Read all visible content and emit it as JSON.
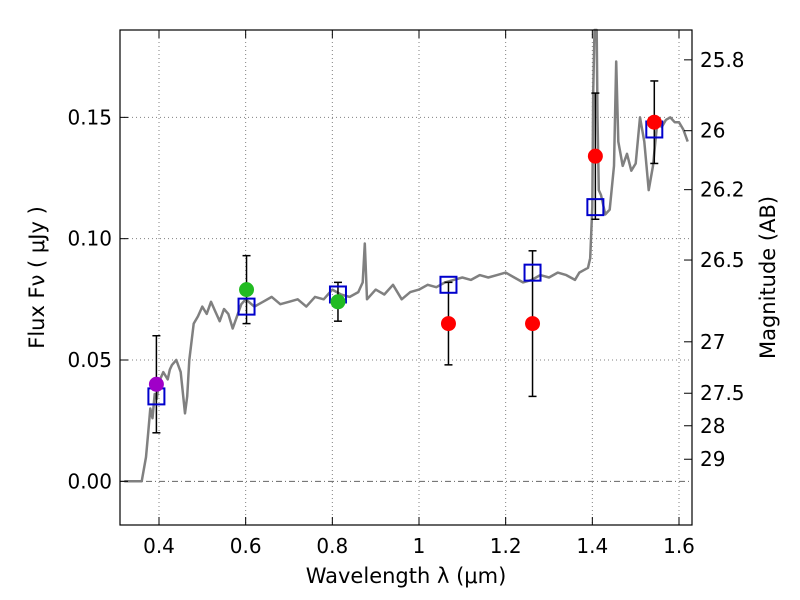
{
  "chart_data": {
    "type": "scatter",
    "xlabel": "Wavelength  λ (μm)",
    "ylabel": "Flux  Fν  ( μJy )",
    "ylabel_right": "Magnitude (AB)",
    "xlim": [
      0.31,
      1.63
    ],
    "ylim": [
      -0.018,
      0.186
    ],
    "x_ticks": [
      0.4,
      0.6,
      0.8,
      1.0,
      1.2,
      1.4,
      1.6
    ],
    "x_tick_labels": [
      "0.4",
      "0.6",
      "0.8",
      "1",
      "1.2",
      "1.4",
      "1.6"
    ],
    "y_ticks": [
      0.0,
      0.05,
      0.1,
      0.15
    ],
    "y_tick_labels": [
      "0.00",
      "0.05",
      "0.10",
      "0.15"
    ],
    "right_ticks": [
      {
        "flux": 0.1737,
        "label": "25.8"
      },
      {
        "flux": 0.1445,
        "label": "26"
      },
      {
        "flux": 0.1202,
        "label": "26.2"
      },
      {
        "flux": 0.0912,
        "label": "26.5"
      },
      {
        "flux": 0.0575,
        "label": "27"
      },
      {
        "flux": 0.0363,
        "label": "27.5"
      },
      {
        "flux": 0.0229,
        "label": "28"
      },
      {
        "flux": 0.0091,
        "label": "29"
      }
    ],
    "grid": true,
    "colors": {
      "sed": "#808080",
      "model": "#0000cc",
      "purple": "#a000c8",
      "green": "#22bb22",
      "red": "#ff0000",
      "errorbar": "#000000",
      "grid": "#808080"
    },
    "series": [
      {
        "name": "SED template",
        "kind": "line",
        "x": [
          0.32,
          0.36,
          0.37,
          0.375,
          0.38,
          0.385,
          0.39,
          0.395,
          0.4,
          0.41,
          0.42,
          0.425,
          0.43,
          0.44,
          0.45,
          0.46,
          0.465,
          0.47,
          0.48,
          0.49,
          0.5,
          0.51,
          0.52,
          0.53,
          0.54,
          0.55,
          0.56,
          0.57,
          0.58,
          0.59,
          0.6,
          0.62,
          0.64,
          0.66,
          0.68,
          0.7,
          0.72,
          0.74,
          0.76,
          0.78,
          0.8,
          0.82,
          0.84,
          0.86,
          0.87,
          0.875,
          0.88,
          0.9,
          0.92,
          0.94,
          0.96,
          0.98,
          1.0,
          1.02,
          1.04,
          1.06,
          1.08,
          1.1,
          1.12,
          1.14,
          1.16,
          1.18,
          1.2,
          1.22,
          1.24,
          1.26,
          1.28,
          1.3,
          1.32,
          1.34,
          1.36,
          1.37,
          1.38,
          1.39,
          1.395,
          1.4,
          1.402,
          1.405,
          1.41,
          1.412,
          1.415,
          1.42,
          1.43,
          1.44,
          1.45,
          1.455,
          1.46,
          1.47,
          1.48,
          1.49,
          1.5,
          1.51,
          1.52,
          1.53,
          1.54,
          1.55,
          1.56,
          1.57,
          1.58,
          1.59,
          1.6,
          1.61,
          1.62
        ],
        "y": [
          0.0,
          0.0,
          0.01,
          0.02,
          0.03,
          0.026,
          0.036,
          0.034,
          0.041,
          0.045,
          0.042,
          0.046,
          0.048,
          0.05,
          0.045,
          0.028,
          0.035,
          0.05,
          0.065,
          0.068,
          0.072,
          0.069,
          0.074,
          0.07,
          0.066,
          0.071,
          0.069,
          0.063,
          0.068,
          0.073,
          0.075,
          0.072,
          0.074,
          0.076,
          0.073,
          0.074,
          0.075,
          0.072,
          0.076,
          0.075,
          0.079,
          0.077,
          0.076,
          0.078,
          0.082,
          0.098,
          0.075,
          0.079,
          0.077,
          0.081,
          0.075,
          0.078,
          0.079,
          0.081,
          0.08,
          0.082,
          0.083,
          0.084,
          0.083,
          0.085,
          0.084,
          0.085,
          0.086,
          0.084,
          0.082,
          0.083,
          0.085,
          0.084,
          0.086,
          0.085,
          0.083,
          0.086,
          0.087,
          0.088,
          0.092,
          0.113,
          0.16,
          0.186,
          0.186,
          0.15,
          0.12,
          0.118,
          0.11,
          0.112,
          0.13,
          0.173,
          0.14,
          0.13,
          0.135,
          0.128,
          0.131,
          0.15,
          0.14,
          0.12,
          0.13,
          0.148,
          0.146,
          0.149,
          0.15,
          0.148,
          0.148,
          0.145,
          0.14
        ]
      },
      {
        "name": "Model photometry",
        "kind": "open-square",
        "color_key": "model",
        "x": [
          0.394,
          0.602,
          0.813,
          1.068,
          1.262,
          1.407,
          1.543
        ],
        "y": [
          0.035,
          0.072,
          0.077,
          0.081,
          0.086,
          0.113,
          0.145
        ]
      },
      {
        "name": "Observed purple",
        "kind": "filled-circle",
        "color_key": "purple",
        "x": [
          0.394
        ],
        "y": [
          0.04
        ],
        "yerr": [
          0.02
        ]
      },
      {
        "name": "Observed green",
        "kind": "filled-circle",
        "color_key": "green",
        "x": [
          0.602,
          0.813
        ],
        "y": [
          0.079,
          0.074
        ],
        "yerr": [
          0.014,
          0.008
        ]
      },
      {
        "name": "Observed red",
        "kind": "filled-circle",
        "color_key": "red",
        "x": [
          1.068,
          1.262,
          1.407,
          1.543
        ],
        "y": [
          0.065,
          0.065,
          0.134,
          0.148
        ],
        "yerr": [
          0.017,
          0.03,
          0.026,
          0.017
        ]
      }
    ]
  }
}
